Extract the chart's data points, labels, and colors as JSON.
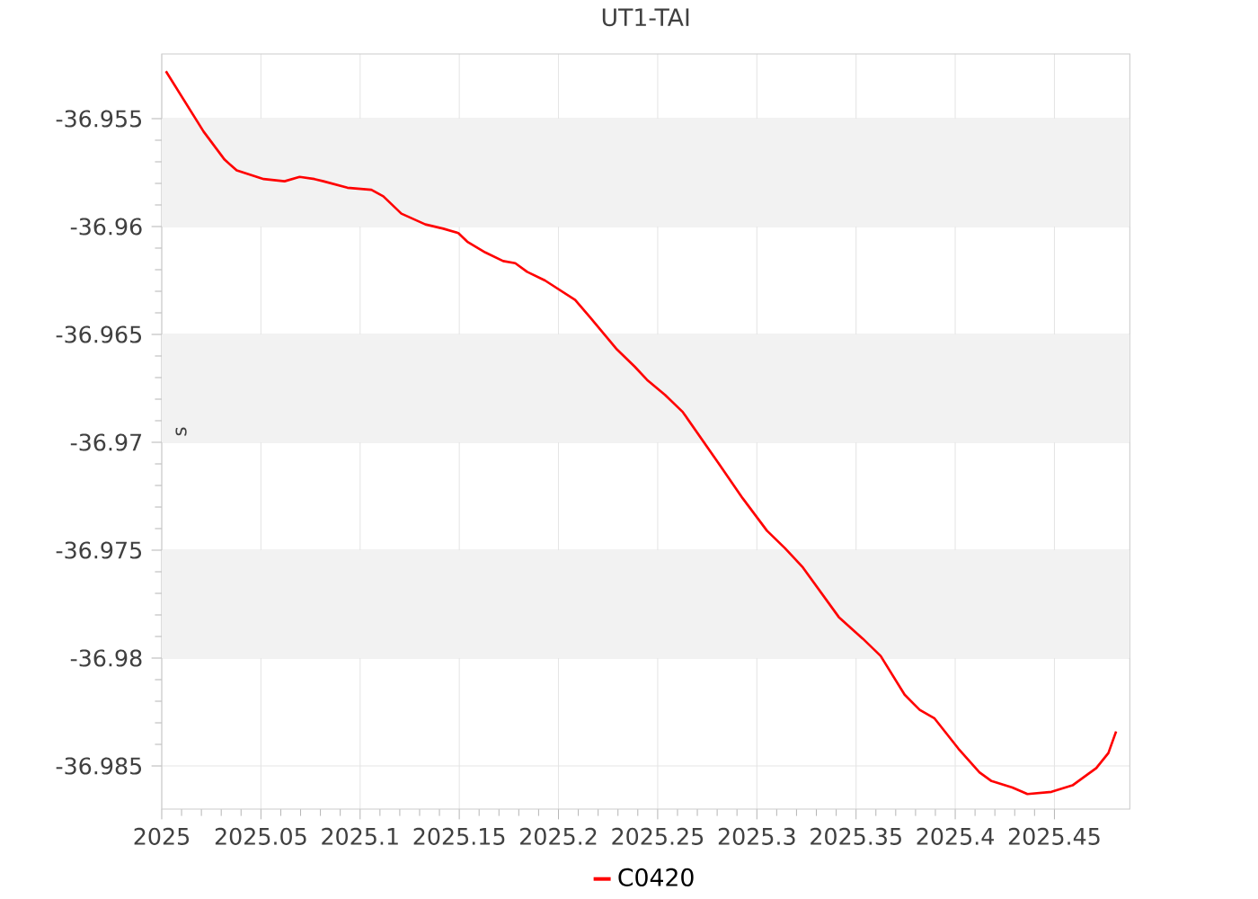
{
  "chart_data": {
    "type": "line",
    "title": "UT1-TAI",
    "ylabel": "s",
    "xlim": [
      2025,
      2025.488
    ],
    "ylim": [
      -36.987,
      -36.952
    ],
    "xticks": [
      2025,
      2025.05,
      2025.1,
      2025.15,
      2025.2,
      2025.25,
      2025.3,
      2025.35,
      2025.4,
      2025.45
    ],
    "yticks": [
      -36.985,
      -36.98,
      -36.975,
      -36.97,
      -36.965,
      -36.96,
      -36.955
    ],
    "grid": true,
    "legend": "bottom",
    "marker": "none",
    "line_style": "solid",
    "bands": [
      {
        "axis": "y",
        "from": -36.96,
        "to": -36.955,
        "color": "#f2f2f2"
      },
      {
        "axis": "y",
        "from": -36.97,
        "to": -36.965,
        "color": "#f2f2f2"
      },
      {
        "axis": "y",
        "from": -36.98,
        "to": -36.975,
        "color": "#f2f2f2"
      }
    ],
    "series": [
      {
        "name": "C0420",
        "color": "#ff0000",
        "x": [
          2025.0021,
          2025.0211,
          2025.0317,
          2025.0378,
          2025.0514,
          2025.0619,
          2025.0695,
          2025.077,
          2025.0815,
          2025.0936,
          2025.1057,
          2025.1117,
          2025.1208,
          2025.1329,
          2025.142,
          2025.1495,
          2025.154,
          2025.1631,
          2025.1721,
          2025.1782,
          2025.1842,
          2025.1932,
          2025.2084,
          2025.2159,
          2025.2295,
          2025.2385,
          2025.2446,
          2025.2537,
          2025.2627,
          2025.2809,
          2025.2929,
          2025.3051,
          2025.3141,
          2025.3232,
          2025.3413,
          2025.3534,
          2025.3624,
          2025.3745,
          2025.3821,
          2025.3896,
          2025.4016,
          2025.4122,
          2025.4183,
          2025.4288,
          2025.4364,
          2025.4485,
          2025.4591,
          2025.4711,
          2025.4772,
          2025.4811
        ],
        "values": [
          -36.9528,
          -36.9556,
          -36.9569,
          -36.9574,
          -36.9578,
          -36.9579,
          -36.9577,
          -36.9578,
          -36.9579,
          -36.9582,
          -36.9583,
          -36.9586,
          -36.9594,
          -36.9599,
          -36.9601,
          -36.9603,
          -36.9607,
          -36.9612,
          -36.9616,
          -36.9617,
          -36.9621,
          -36.9625,
          -36.9634,
          -36.9642,
          -36.9657,
          -36.9665,
          -36.9671,
          -36.9678,
          -36.9686,
          -36.971,
          -36.9726,
          -36.9741,
          -36.9749,
          -36.9758,
          -36.9781,
          -36.9791,
          -36.9799,
          -36.9817,
          -36.9824,
          -36.9828,
          -36.9842,
          -36.9853,
          -36.9857,
          -36.986,
          -36.9863,
          -36.9862,
          -36.9859,
          -36.9851,
          -36.9844,
          -36.9834
        ]
      }
    ]
  }
}
